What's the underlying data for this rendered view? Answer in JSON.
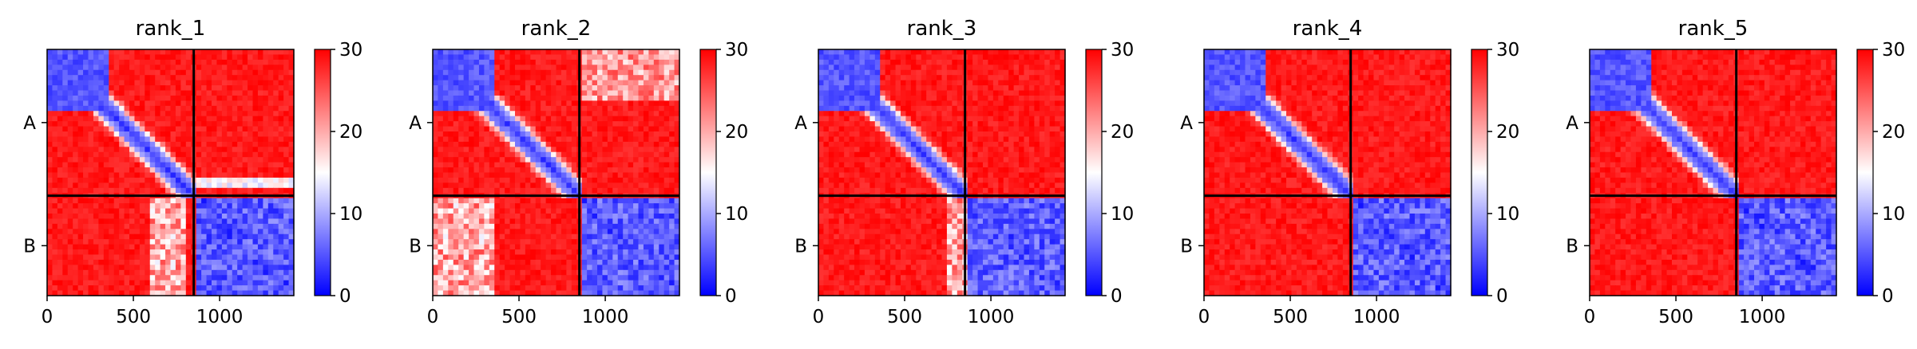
{
  "chart_data": [
    {
      "type": "heatmap",
      "title": "rank_1",
      "chains": [
        "A",
        "B"
      ],
      "xticks": [
        "0",
        "500",
        "1000"
      ],
      "xtick_values": [
        0,
        500,
        1000
      ],
      "x_range": [
        0,
        1430
      ],
      "chain_boundary": 850,
      "colorbar": {
        "ticks": [
          "0",
          "10",
          "20",
          "30"
        ],
        "range": [
          0,
          30
        ],
        "colormap": [
          "#0000ff",
          "#ffffff",
          "#ff0000"
        ]
      },
      "pattern": {
        "A_intra_domain_end": 370,
        "interchain_low_band": "lower rows of A-B block",
        "B_low_columns": [
          600,
          800
        ]
      }
    },
    {
      "type": "heatmap",
      "title": "rank_2",
      "chains": [
        "A",
        "B"
      ],
      "xticks": [
        "0",
        "500",
        "1000"
      ],
      "xtick_values": [
        0,
        500,
        1000
      ],
      "x_range": [
        0,
        1430
      ],
      "chain_boundary": 850,
      "colorbar": {
        "ticks": [
          "0",
          "10",
          "20",
          "30"
        ],
        "range": [
          0,
          30
        ],
        "colormap": [
          "#0000ff",
          "#ffffff",
          "#ff0000"
        ]
      },
      "pattern": {
        "A_intra_domain_end": 370,
        "interchain_low_band": "upper rows of A-B block",
        "B_low_columns": [
          0,
          370
        ]
      }
    },
    {
      "type": "heatmap",
      "title": "rank_3",
      "chains": [
        "A",
        "B"
      ],
      "xticks": [
        "0",
        "500",
        "1000"
      ],
      "xtick_values": [
        0,
        500,
        1000
      ],
      "x_range": [
        0,
        1430
      ],
      "chain_boundary": 850,
      "colorbar": {
        "ticks": [
          "0",
          "10",
          "20",
          "30"
        ],
        "range": [
          0,
          30
        ],
        "colormap": [
          "#0000ff",
          "#ffffff",
          "#ff0000"
        ]
      },
      "pattern": {
        "A_intra_domain_end": 370,
        "interchain_low_band": "none",
        "B_low_columns": [
          750,
          850
        ]
      }
    },
    {
      "type": "heatmap",
      "title": "rank_4",
      "chains": [
        "A",
        "B"
      ],
      "xticks": [
        "0",
        "500",
        "1000"
      ],
      "xtick_values": [
        0,
        500,
        1000
      ],
      "x_range": [
        0,
        1430
      ],
      "chain_boundary": 850,
      "colorbar": {
        "ticks": [
          "0",
          "10",
          "20",
          "30"
        ],
        "range": [
          0,
          30
        ],
        "colormap": [
          "#0000ff",
          "#ffffff",
          "#ff0000"
        ]
      },
      "pattern": {
        "A_intra_domain_end": 370,
        "interchain_low_band": "none",
        "B_low_columns": "none"
      }
    },
    {
      "type": "heatmap",
      "title": "rank_5",
      "chains": [
        "A",
        "B"
      ],
      "xticks": [
        "0",
        "500",
        "1000"
      ],
      "xtick_values": [
        0,
        500,
        1000
      ],
      "x_range": [
        0,
        1430
      ],
      "chain_boundary": 850,
      "colorbar": {
        "ticks": [
          "0",
          "10",
          "20",
          "30"
        ],
        "range": [
          0,
          30
        ],
        "colormap": [
          "#0000ff",
          "#ffffff",
          "#ff0000"
        ]
      },
      "pattern": {
        "A_intra_domain_end": 370,
        "interchain_low_band": "none",
        "B_low_columns": "none"
      }
    }
  ]
}
